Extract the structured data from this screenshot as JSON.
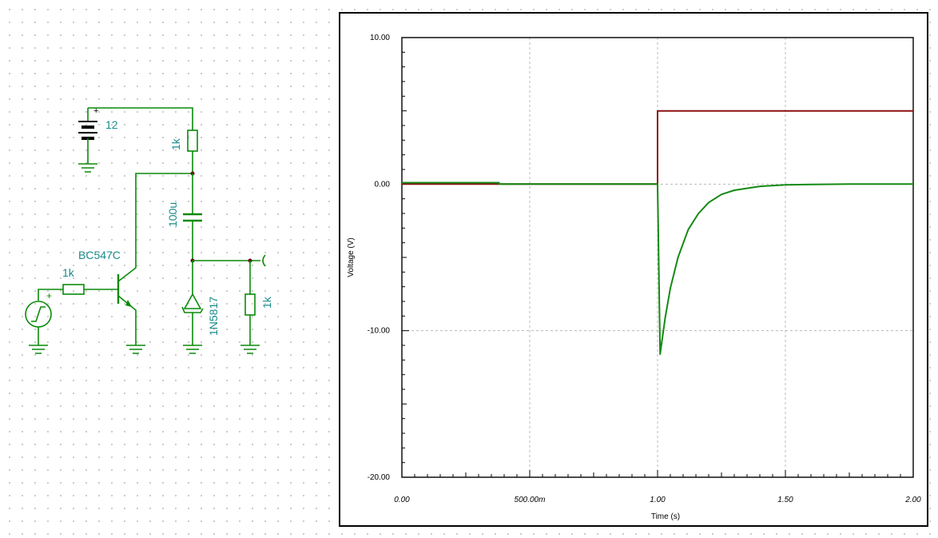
{
  "schematic": {
    "battery_value": "12",
    "collector_resistor": "1k",
    "capacitor": "100u",
    "transistor": "BC547C",
    "base_resistor": "1k",
    "diode": "1N5817",
    "load_resistor": "1k",
    "plus_sign": "+"
  },
  "chart_data": {
    "type": "line",
    "xlabel": "Time (s)",
    "ylabel": "Voltage (V)",
    "xlim": [
      0,
      2
    ],
    "ylim": [
      -20,
      10
    ],
    "x_tick_labels": [
      "0.00",
      "500.00m",
      "1.00",
      "1.50",
      "2.00"
    ],
    "y_tick_labels": [
      "10.00",
      "0.00",
      "-10.00",
      "-20.00"
    ],
    "grid": true,
    "series": [
      {
        "color": "#8b1010",
        "x": [
          0,
          1.0,
          1.0,
          2.0
        ],
        "y": [
          0,
          0,
          5,
          5
        ]
      },
      {
        "color": "#148a14",
        "x": [
          0,
          0.38,
          0.38,
          1.0,
          1.0,
          1.01,
          1.03,
          1.05,
          1.08,
          1.12,
          1.16,
          1.2,
          1.25,
          1.3,
          1.4,
          1.5,
          1.6,
          1.75,
          2.0
        ],
        "y": [
          0.1,
          0.1,
          0,
          0,
          0,
          -11.6,
          -9.1,
          -7.1,
          -5.0,
          -3.1,
          -2.0,
          -1.25,
          -0.7,
          -0.42,
          -0.15,
          -0.05,
          -0.02,
          0,
          0
        ]
      }
    ]
  }
}
